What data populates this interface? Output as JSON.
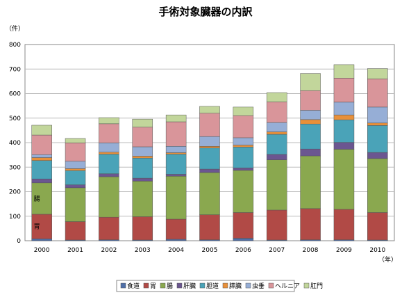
{
  "chart_data": {
    "type": "bar",
    "stacked": true,
    "title": "手術対象臓器の内訳",
    "ylabel": "（件）",
    "xlabel": "（年）",
    "ylim": [
      0,
      800
    ],
    "yticks": [
      0,
      100,
      200,
      300,
      400,
      500,
      600,
      700,
      800
    ],
    "grid": true,
    "legend_position": "bottom",
    "categories": [
      "2000",
      "2001",
      "2002",
      "2003",
      "2004",
      "2005",
      "2006",
      "2007",
      "2008",
      "2009",
      "2010"
    ],
    "series": [
      {
        "name": "食道",
        "color": "#4f6fa8",
        "values": [
          8,
          3,
          4,
          3,
          6,
          4,
          10,
          3,
          4,
          4,
          3
        ]
      },
      {
        "name": "胃",
        "color": "#b14a46",
        "values": [
          100,
          75,
          92,
          95,
          82,
          102,
          105,
          122,
          127,
          124,
          112
        ]
      },
      {
        "name": "腸",
        "color": "#8aa84f",
        "values": [
          128,
          138,
          165,
          145,
          175,
          172,
          172,
          205,
          215,
          245,
          220
        ]
      },
      {
        "name": "肝臓",
        "color": "#6b5690",
        "values": [
          16,
          12,
          12,
          12,
          8,
          14,
          10,
          22,
          28,
          28,
          25
        ]
      },
      {
        "name": "胆道",
        "color": "#4aa3b8",
        "values": [
          75,
          58,
          80,
          82,
          82,
          86,
          85,
          82,
          102,
          92,
          110
        ]
      },
      {
        "name": "膵臓",
        "color": "#e8903a",
        "values": [
          12,
          8,
          8,
          8,
          6,
          7,
          8,
          10,
          18,
          20,
          10
        ]
      },
      {
        "name": "虫垂",
        "color": "#96aed6",
        "values": [
          12,
          30,
          38,
          38,
          26,
          40,
          30,
          38,
          38,
          52,
          65
        ]
      },
      {
        "name": "ヘルニア",
        "color": "#d9959a",
        "values": [
          80,
          75,
          78,
          80,
          100,
          95,
          90,
          84,
          80,
          98,
          115
        ]
      },
      {
        "name": "肛門",
        "color": "#c2d69b",
        "values": [
          40,
          18,
          25,
          33,
          28,
          28,
          35,
          38,
          70,
          55,
          42
        ]
      }
    ],
    "in_bar_labels": [
      "腸",
      "胃"
    ]
  }
}
